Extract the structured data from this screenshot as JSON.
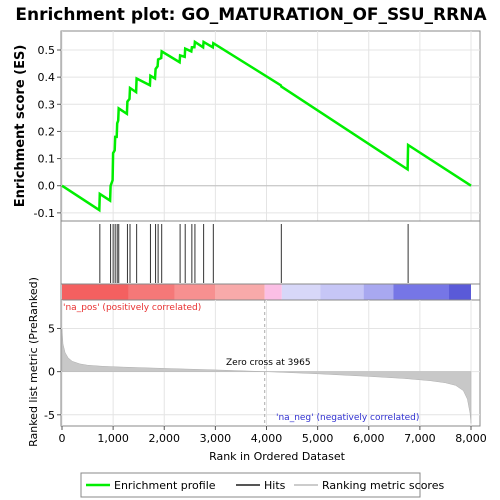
{
  "chart_data": {
    "type": "line",
    "title": "Enrichment plot: GO_MATURATION_OF_SSU_RRNA",
    "xlabel": "Rank in Ordered Dataset",
    "ylabel_top": "Enrichment score (ES)",
    "ylabel_bottom": "Ranked list metric (PreRanked)",
    "xlim": [
      0,
      8000
    ],
    "x_ticks": [
      0,
      1000,
      2000,
      3000,
      4000,
      5000,
      6000,
      7000,
      8000
    ],
    "x_tick_labels": [
      "0",
      "1,000",
      "2,000",
      "3,000",
      "4,000",
      "5,000",
      "6,000",
      "7,000",
      "8,000"
    ],
    "es_ylim": [
      -0.13,
      0.57
    ],
    "es_ticks": [
      -0.1,
      0.0,
      0.1,
      0.2,
      0.3,
      0.4,
      0.5
    ],
    "es_tick_labels": [
      "-0.1",
      "0.0",
      "0.1",
      "0.2",
      "0.3",
      "0.4",
      "0.5"
    ],
    "metric_ylim": [
      -6.3,
      8.3
    ],
    "metric_ticks": [
      -5,
      0,
      5
    ],
    "metric_tick_labels": [
      "-5",
      "0",
      "5"
    ],
    "series": [
      {
        "name": "Enrichment profile",
        "color": "#00ee00",
        "x": [
          0,
          730,
          740,
          940,
          950,
          990,
          1000,
          1030,
          1040,
          1070,
          1080,
          1100,
          1110,
          1270,
          1280,
          1320,
          1330,
          1450,
          1460,
          1720,
          1730,
          1820,
          1830,
          1870,
          1880,
          1940,
          1950,
          2300,
          2310,
          2400,
          2410,
          2530,
          2540,
          2590,
          2600,
          2760,
          2770,
          2950,
          2960,
          4280,
          4290,
          6760,
          6770,
          8000
        ],
        "y": [
          0.0,
          -0.09,
          -0.03,
          -0.055,
          0.0,
          0.02,
          0.12,
          0.13,
          0.18,
          0.18,
          0.23,
          0.24,
          0.285,
          0.265,
          0.31,
          0.32,
          0.36,
          0.345,
          0.395,
          0.37,
          0.405,
          0.395,
          0.43,
          0.44,
          0.465,
          0.47,
          0.495,
          0.455,
          0.48,
          0.475,
          0.505,
          0.495,
          0.51,
          0.51,
          0.53,
          0.51,
          0.53,
          0.51,
          0.525,
          0.37,
          0.365,
          0.06,
          0.15,
          0.0
        ]
      }
    ],
    "hits": [
      740,
      950,
      1000,
      1040,
      1080,
      1110,
      1280,
      1330,
      1460,
      1730,
      1830,
      1880,
      1950,
      2310,
      2410,
      2540,
      2600,
      2770,
      2960,
      4290,
      6770
    ],
    "metric_profile": {
      "x": [
        0,
        20,
        60,
        120,
        200,
        350,
        500,
        800,
        1200,
        2000,
        3000,
        3965,
        5000,
        6000,
        6700,
        7200,
        7500,
        7700,
        7850,
        7930,
        7980,
        8000
      ],
      "y": [
        5.0,
        3.2,
        2.2,
        1.6,
        1.2,
        0.9,
        0.75,
        0.62,
        0.52,
        0.38,
        0.2,
        0.0,
        -0.25,
        -0.55,
        -0.8,
        -1.05,
        -1.3,
        -1.6,
        -2.2,
        -3.2,
        -4.8,
        -6.0
      ]
    },
    "zero_cross_rank": 3965,
    "gradient_colors": [
      "#f46060",
      "#f57878",
      "#f79090",
      "#f8aaaa",
      "#fbbfe5",
      "#d7d7f8",
      "#c6c6f6",
      "#a8a8f0",
      "#7676e6",
      "#5a5ad8",
      "#2a2ac0"
    ],
    "gradient_stops": [
      0,
      1300,
      2200,
      3000,
      3965,
      4300,
      5050,
      5900,
      6480,
      7570,
      8000
    ],
    "annotations": {
      "pos_label": "'na_pos' (positively correlated)",
      "neg_label": "'na_neg' (negatively correlated)",
      "zero_cross": "Zero cross at 3965"
    },
    "legend": {
      "placement": "bottom",
      "items": [
        {
          "label": "Enrichment profile",
          "color": "#00ee00"
        },
        {
          "label": "Hits",
          "color": "#555555"
        },
        {
          "label": "Ranking metric scores",
          "color": "#cccccc"
        }
      ]
    }
  }
}
